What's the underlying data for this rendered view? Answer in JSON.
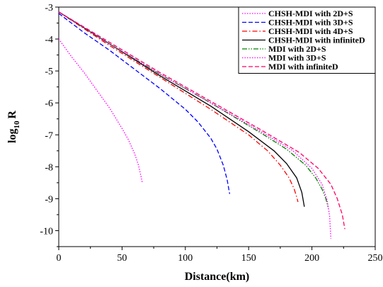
{
  "chart_data": {
    "type": "line",
    "title": "",
    "xlabel": "Distance(km)",
    "ylabel": {
      "base": "log",
      "subscript": "10",
      "rest": "R"
    },
    "xlim": [
      0,
      250
    ],
    "ylim": [
      -10.5,
      -3
    ],
    "x_ticks": [
      0,
      50,
      100,
      150,
      200,
      250
    ],
    "y_ticks": [
      -3,
      -4,
      -5,
      -6,
      -7,
      -8,
      -9,
      -10
    ],
    "x_tick_labels": [
      "0",
      "50",
      "100",
      "150",
      "200",
      "250"
    ],
    "y_tick_labels": [
      "-3",
      "-4",
      "-5",
      "-6",
      "-7",
      "-8",
      "-9",
      "-10"
    ],
    "grid": false,
    "legend_position": "top-right",
    "series": [
      {
        "name": "CHSH-MDI with 2D+S",
        "color": "#ff00ff",
        "dash": "dot",
        "x": [
          0,
          10,
          20,
          30,
          40,
          50,
          55,
          60,
          63,
          65,
          66
        ],
        "y": [
          -4.0,
          -4.55,
          -5.05,
          -5.6,
          -6.15,
          -6.8,
          -7.15,
          -7.6,
          -7.95,
          -8.3,
          -8.5
        ]
      },
      {
        "name": "CHSH-MDI with 3D+S",
        "color": "#0000ff",
        "dash": "dash",
        "x": [
          0,
          20,
          40,
          60,
          80,
          100,
          110,
          120,
          125,
          130,
          133,
          135
        ],
        "y": [
          -3.2,
          -3.8,
          -4.35,
          -4.95,
          -5.55,
          -6.2,
          -6.6,
          -7.1,
          -7.45,
          -7.95,
          -8.4,
          -8.85
        ]
      },
      {
        "name": "CHSH-MDI with 4D+S",
        "color": "#ff0000",
        "dash": "dashdot",
        "x": [
          0,
          40,
          80,
          120,
          150,
          165,
          175,
          182,
          186,
          188,
          189
        ],
        "y": [
          -3.15,
          -4.2,
          -5.2,
          -6.2,
          -7.0,
          -7.5,
          -7.95,
          -8.35,
          -8.7,
          -8.95,
          -9.1
        ]
      },
      {
        "name": "CHSH-MDI with infiniteD",
        "color": "#000000",
        "dash": "solid",
        "x": [
          0,
          40,
          80,
          120,
          150,
          170,
          180,
          188,
          192,
          194
        ],
        "y": [
          -3.15,
          -4.15,
          -5.15,
          -6.1,
          -6.9,
          -7.5,
          -7.9,
          -8.35,
          -8.8,
          -9.25
        ]
      },
      {
        "name": "MDI with 2D+S",
        "color": "#008000",
        "dash": "dashdotdot",
        "x": [
          0,
          40,
          80,
          120,
          160,
          180,
          195,
          203,
          208,
          211,
          213
        ],
        "y": [
          -3.15,
          -4.15,
          -5.1,
          -6.0,
          -6.95,
          -7.45,
          -7.95,
          -8.35,
          -8.7,
          -9.0,
          -9.3
        ]
      },
      {
        "name": "MDI with 3D+S",
        "color": "#ff00ff",
        "dash": "dot",
        "x": [
          0,
          40,
          80,
          120,
          160,
          185,
          200,
          208,
          212,
          214,
          215
        ],
        "y": [
          -3.15,
          -4.15,
          -5.1,
          -6.0,
          -6.9,
          -7.5,
          -8.05,
          -8.55,
          -9.05,
          -9.55,
          -10.25
        ]
      },
      {
        "name": "MDI with infiniteD",
        "color": "#ff0066",
        "dash": "dash",
        "x": [
          0,
          40,
          80,
          120,
          160,
          190,
          205,
          215,
          220,
          224,
          226
        ],
        "y": [
          -3.15,
          -4.1,
          -5.05,
          -5.95,
          -6.85,
          -7.55,
          -8.05,
          -8.55,
          -9.0,
          -9.5,
          -9.95
        ]
      }
    ]
  }
}
